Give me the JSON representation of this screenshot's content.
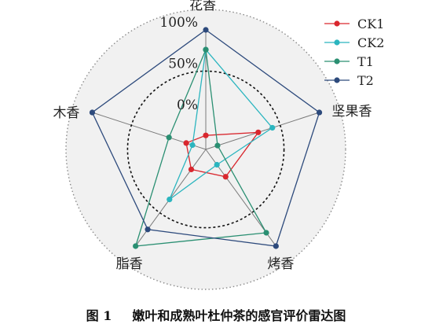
{
  "chart_data": {
    "type": "radar",
    "axes": [
      "花香",
      "坚果香",
      "烤香",
      "脂香",
      "木香"
    ],
    "ring_labels": [
      "0%",
      "50%",
      "100%"
    ],
    "range": [
      -45,
      100
    ],
    "series": [
      {
        "name": "CK1",
        "color": "#d9272e",
        "values": [
          -28,
          22,
          -4,
          -15,
          -20
        ]
      },
      {
        "name": "CK2",
        "color": "#2bb5bf",
        "values": [
          76,
          40,
          -22,
          30,
          -28
        ]
      },
      {
        "name": "T1",
        "color": "#2a8f72",
        "values": [
          76,
          -30,
          80,
          100,
          2
        ]
      },
      {
        "name": "T2",
        "color": "#2d4a7c",
        "values": [
          100,
          100,
          100,
          75,
          100
        ]
      }
    ],
    "legend_position": "top-right"
  },
  "caption": {
    "figure_number": "图 1",
    "text": "嫩叶和成熟叶杜仲茶的感官评价雷达图"
  }
}
